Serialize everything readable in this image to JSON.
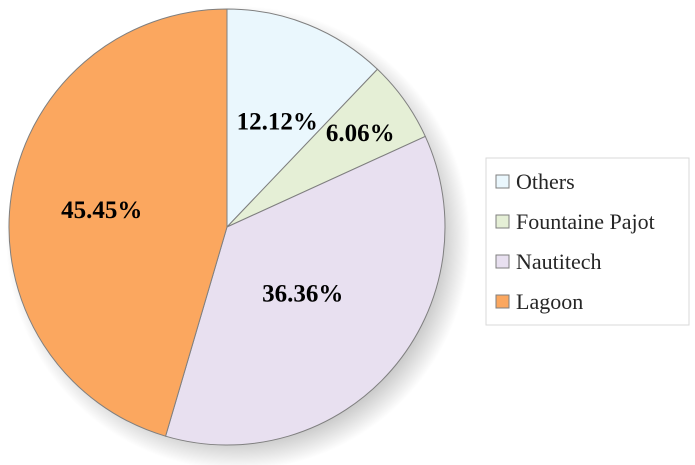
{
  "chart_data": {
    "type": "pie",
    "title": "",
    "slices": [
      {
        "label": "Others",
        "value": 12.12,
        "display": "12.12%",
        "color": "#EAF7FD"
      },
      {
        "label": "Fountaine Pajot",
        "value": 6.06,
        "display": "6.06%",
        "color": "#E5EFD6"
      },
      {
        "label": "Nautitech",
        "value": 36.36,
        "display": "36.36%",
        "color": "#E8E0F0"
      },
      {
        "label": "Lagoon",
        "value": 45.45,
        "display": "45.45%",
        "color": "#FBA75F"
      }
    ],
    "start_angle": "12 o'clock",
    "direction": "clockwise",
    "legend_position": "right",
    "shadow": true
  }
}
